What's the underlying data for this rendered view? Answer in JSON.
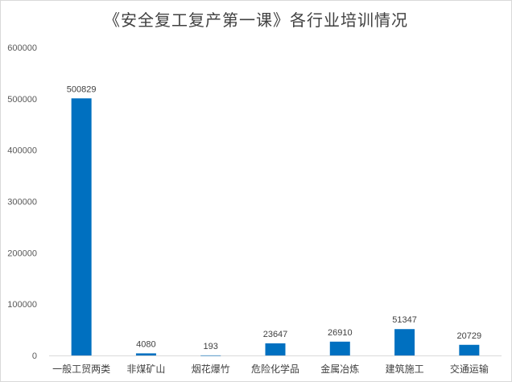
{
  "chart_data": {
    "type": "bar",
    "title": "《安全复工复产第一课》各行业培训情况",
    "categories": [
      "一般工贸两类",
      "非煤矿山",
      "烟花爆竹",
      "危险化学品",
      "金属冶炼",
      "建筑施工",
      "交通运输"
    ],
    "values": [
      500829,
      4080,
      193,
      23647,
      26910,
      51347,
      20729
    ],
    "data_labels": [
      "500829",
      "4080",
      "193",
      "23647",
      "26910",
      "51347",
      "20729"
    ],
    "ylim": [
      0,
      600000
    ],
    "yticks": [
      "0",
      "100000",
      "200000",
      "300000",
      "400000",
      "500000",
      "600000"
    ],
    "grid": false,
    "legend": "none",
    "bar_color": "#0070c0"
  }
}
